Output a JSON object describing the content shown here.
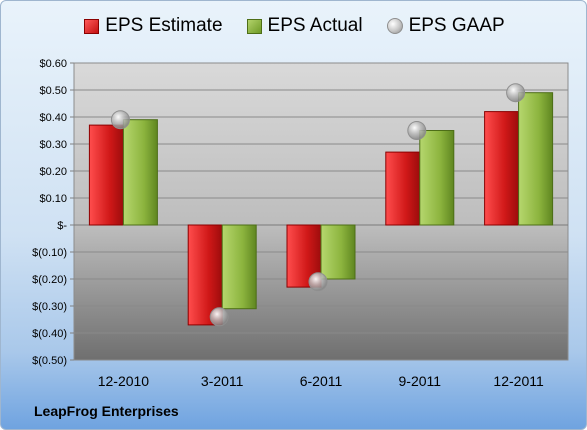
{
  "company": "LeapFrog Enterprises",
  "colors": {
    "estimate": "#d01818",
    "actual": "#8cb43e",
    "gaap": "#b8b8b8",
    "plot_top": "#d9d9d9",
    "plot_bottom": "#6f6f6f"
  },
  "chart_data": {
    "type": "bar",
    "categories": [
      "12-2010",
      "3-2011",
      "6-2011",
      "9-2011",
      "12-2011"
    ],
    "series": [
      {
        "name": "EPS Estimate",
        "values": [
          0.37,
          -0.37,
          -0.23,
          0.27,
          0.42
        ]
      },
      {
        "name": "EPS Actual",
        "values": [
          0.39,
          -0.31,
          -0.2,
          0.35,
          0.49
        ]
      },
      {
        "name": "EPS GAAP",
        "values": [
          0.39,
          -0.34,
          -0.21,
          0.35,
          0.49
        ]
      }
    ],
    "ylim": [
      -0.5,
      0.6
    ],
    "yticks": [
      {
        "value": 0.6,
        "label": "$0.60"
      },
      {
        "value": 0.5,
        "label": "$0.50"
      },
      {
        "value": 0.4,
        "label": "$0.40"
      },
      {
        "value": 0.3,
        "label": "$0.30"
      },
      {
        "value": 0.2,
        "label": "$0.20"
      },
      {
        "value": 0.1,
        "label": "$0.10"
      },
      {
        "value": 0.0,
        "label": "$-"
      },
      {
        "value": -0.1,
        "label": "$(0.10)"
      },
      {
        "value": -0.2,
        "label": "$(0.20)"
      },
      {
        "value": -0.3,
        "label": "$(0.30)"
      },
      {
        "value": -0.4,
        "label": "$(0.40)"
      },
      {
        "value": -0.5,
        "label": "$(0.50)"
      }
    ],
    "grid": true,
    "legend": "top"
  }
}
